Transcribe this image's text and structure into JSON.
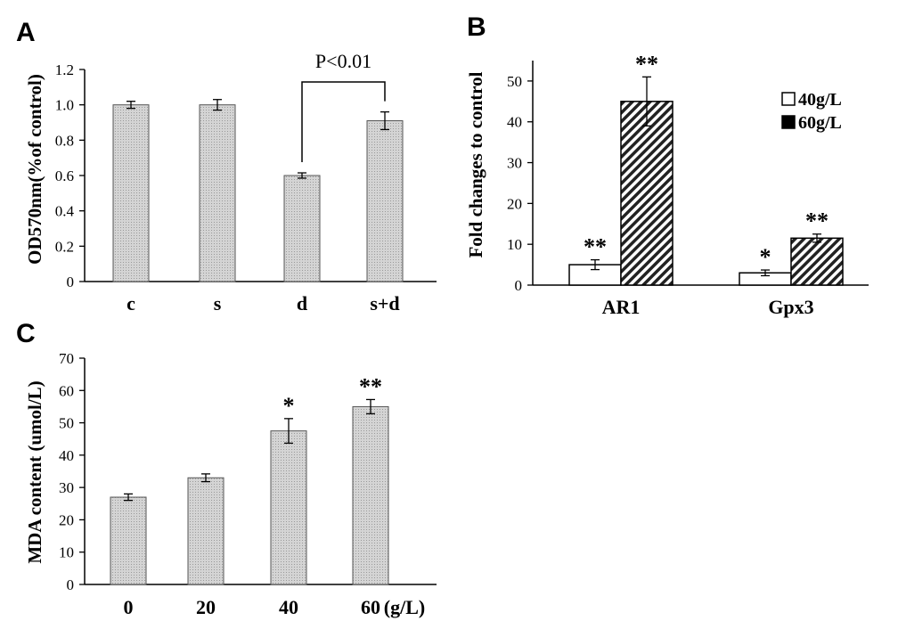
{
  "chart_data": [
    {
      "panel": "A",
      "type": "bar",
      "categories": [
        "c",
        "s",
        "d",
        "s+d"
      ],
      "values": [
        1.0,
        1.0,
        0.6,
        0.91
      ],
      "errors": [
        0.02,
        0.03,
        0.015,
        0.05
      ],
      "ylabel": "OD570nm(%of control)",
      "ylim": [
        0,
        1.2
      ],
      "yticks": [
        "0",
        "0.2",
        "0.4",
        "0.6",
        "0.8",
        "1.0",
        "1.2"
      ],
      "annotation": "P<0.01",
      "bar_color": "#c8c8c8"
    },
    {
      "panel": "B",
      "type": "bar",
      "categories": [
        "AR1",
        "Gpx3"
      ],
      "series": [
        {
          "name": "40g/L",
          "values": [
            5,
            3
          ],
          "errors": [
            1.2,
            0.7
          ],
          "marks": [
            "**",
            "*"
          ],
          "fill": "#ffffff"
        },
        {
          "name": "60g/L",
          "values": [
            45,
            11.5
          ],
          "errors": [
            6,
            1
          ],
          "marks": [
            "**",
            "**"
          ],
          "fill": "hatch"
        }
      ],
      "ylabel": "Fold changes to control",
      "ylim": [
        0,
        55
      ],
      "yticks": [
        "0",
        "10",
        "20",
        "30",
        "40",
        "50"
      ],
      "legend": "top-right"
    },
    {
      "panel": "C",
      "type": "bar",
      "categories": [
        "0",
        "20",
        "40",
        "60"
      ],
      "values": [
        27,
        33,
        47.5,
        55
      ],
      "errors": [
        1,
        1.2,
        3.8,
        2.2
      ],
      "marks": [
        "",
        "",
        "*",
        "**"
      ],
      "xunit": "(g/L)",
      "ylabel": "MDA content (umol/L)",
      "ylim": [
        0,
        70
      ],
      "yticks": [
        "0",
        "10",
        "20",
        "30",
        "40",
        "50",
        "60",
        "70"
      ],
      "bar_color": "#c8c8c8"
    }
  ]
}
